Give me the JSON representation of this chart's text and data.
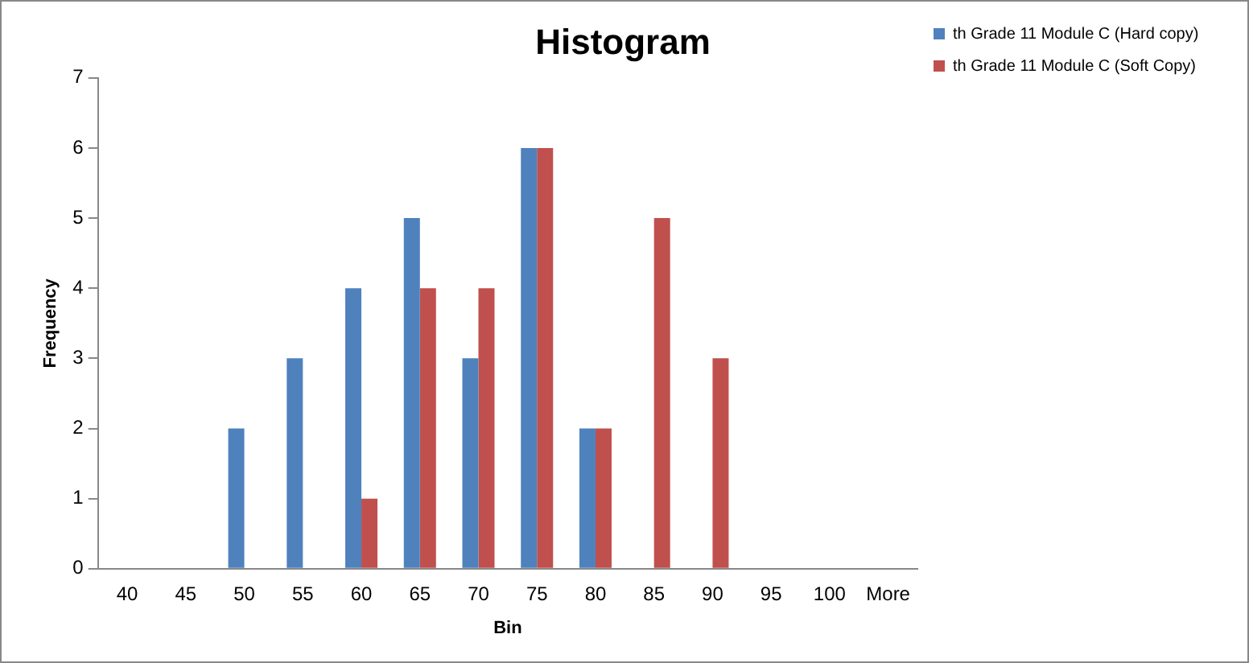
{
  "chart_data": {
    "type": "bar",
    "title": "Histogram",
    "xlabel": "Bin",
    "ylabel": "Frequency",
    "categories": [
      "40",
      "45",
      "50",
      "55",
      "60",
      "65",
      "70",
      "75",
      "80",
      "85",
      "90",
      "95",
      "100",
      "More"
    ],
    "series": [
      {
        "name": "th Grade 11 Module C (Hard copy)",
        "color": "#4f81bd",
        "values": [
          0,
          0,
          2,
          3,
          4,
          5,
          3,
          6,
          2,
          0,
          0,
          0,
          0,
          0
        ]
      },
      {
        "name": "th Grade 11 Module C (Soft Copy)",
        "color": "#c0504d",
        "values": [
          0,
          0,
          0,
          0,
          1,
          4,
          4,
          6,
          2,
          5,
          3,
          0,
          0,
          0
        ]
      }
    ],
    "ylim": [
      0,
      7
    ],
    "yticks": [
      0,
      1,
      2,
      3,
      4,
      5,
      6,
      7
    ],
    "grid": false,
    "legend": "top right"
  }
}
